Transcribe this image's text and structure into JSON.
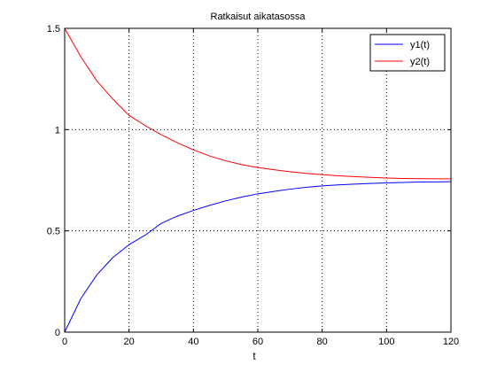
{
  "chart_data": {
    "type": "line",
    "title": "Ratkaisut aikatasossa",
    "xlabel": "t",
    "ylabel": "",
    "xlim": [
      0,
      120
    ],
    "ylim": [
      0,
      1.5
    ],
    "x_ticks": [
      0,
      20,
      40,
      60,
      80,
      100,
      120
    ],
    "y_ticks": [
      0,
      0.5,
      1,
      1.5
    ],
    "x_tick_labels": [
      "0",
      "20",
      "40",
      "60",
      "80",
      "100",
      "120"
    ],
    "y_tick_labels": [
      "0",
      "0.5",
      "1",
      "1.5"
    ],
    "grid": true,
    "legend_position": "top-right",
    "x": [
      0,
      5,
      10,
      15,
      20,
      25,
      30,
      35,
      40,
      45,
      50,
      55,
      60,
      65,
      70,
      75,
      80,
      85,
      90,
      95,
      100,
      105,
      110,
      115,
      120
    ],
    "series": [
      {
        "name": "y1(t)",
        "color": "#0000ff",
        "values": [
          0.0,
          0.165,
          0.283,
          0.369,
          0.432,
          0.479,
          0.537,
          0.573,
          0.601,
          0.626,
          0.648,
          0.667,
          0.683,
          0.695,
          0.706,
          0.715,
          0.722,
          0.727,
          0.731,
          0.734,
          0.737,
          0.739,
          0.741,
          0.742,
          0.743
        ]
      },
      {
        "name": "y2(t)",
        "color": "#ff0000",
        "values": [
          1.5,
          1.36,
          1.24,
          1.15,
          1.07,
          1.02,
          0.975,
          0.935,
          0.9,
          0.87,
          0.846,
          0.827,
          0.813,
          0.802,
          0.792,
          0.784,
          0.778,
          0.772,
          0.768,
          0.764,
          0.761,
          0.759,
          0.758,
          0.757,
          0.757
        ]
      }
    ]
  }
}
